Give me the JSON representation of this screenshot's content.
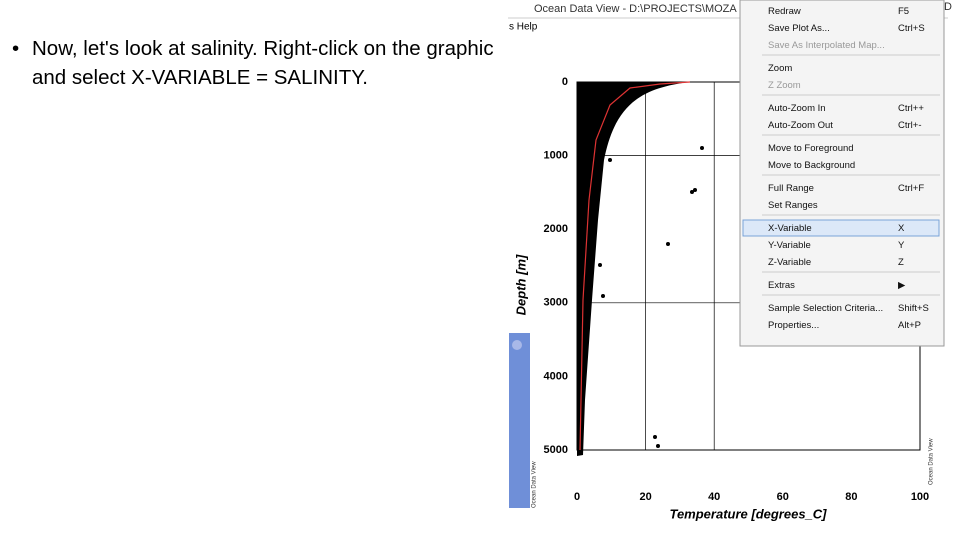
{
  "slide": {
    "bullet": "Now, let's look at salinity.  Right-click on the graphic and select X-VARIABLE = SALINITY."
  },
  "window": {
    "title": "Ocean Data View - D:\\PROJECTS\\MOZA",
    "menu": "s  Help",
    "corner": "D"
  },
  "plot": {
    "y_axis_label": "Depth [m]",
    "x_axis_label": "Temperature [degrees_C]",
    "y_tick_labels": [
      "0",
      "1000",
      "2000",
      "3000",
      "4000",
      "5000"
    ],
    "x_tick_labels": [
      "0",
      "20",
      "40",
      "60",
      "80",
      "100"
    ],
    "watermark": "Ocean Data View",
    "side_watermark": "Ocean Data View"
  },
  "context_menu": {
    "groups": [
      [
        {
          "label": "Redraw",
          "shortcut": "F5"
        },
        {
          "label": "Save Plot As...",
          "shortcut": "Ctrl+S"
        },
        {
          "label": "Save As Interpolated Map...",
          "disabled": true
        }
      ],
      [
        {
          "label": "Zoom"
        },
        {
          "label": "Z Zoom",
          "disabled": true
        }
      ],
      [
        {
          "label": "Auto-Zoom In",
          "shortcut": "Ctrl++"
        },
        {
          "label": "Auto-Zoom Out",
          "shortcut": "Ctrl+-"
        }
      ],
      [
        {
          "label": "Move to Foreground"
        },
        {
          "label": "Move to Background"
        }
      ],
      [
        {
          "label": "Full Range",
          "shortcut": "Ctrl+F"
        },
        {
          "label": "Set Ranges"
        }
      ],
      [
        {
          "label": "X-Variable",
          "shortcut": "X",
          "highlighted": true
        },
        {
          "label": "Y-Variable",
          "shortcut": "Y"
        },
        {
          "label": "Z-Variable",
          "shortcut": "Z"
        }
      ],
      [
        {
          "label": "Extras",
          "shortcut": "▶"
        }
      ],
      [
        {
          "label": "Sample Selection Criteria...",
          "shortcut": "Shift+S"
        },
        {
          "label": "Properties...",
          "shortcut": "Alt+P"
        }
      ]
    ]
  }
}
